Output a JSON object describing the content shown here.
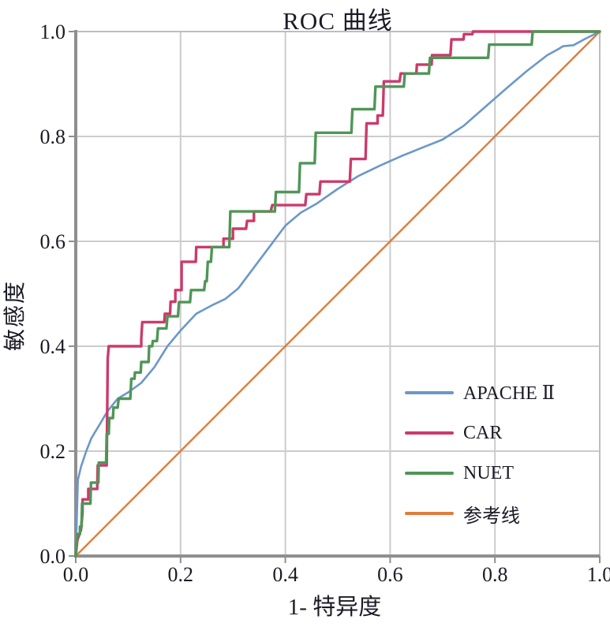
{
  "chart_data": {
    "type": "line",
    "title": "ROC 曲线",
    "xlabel": "1- 特异度",
    "ylabel": "敏感度",
    "xlim": [
      0.0,
      1.0
    ],
    "ylim": [
      0.0,
      1.0
    ],
    "grid": true,
    "grid_ticks": [
      0.2,
      0.4,
      0.6,
      0.8
    ],
    "x_ticks": [
      0.0,
      0.2,
      0.4,
      0.6,
      0.8,
      1.0
    ],
    "x_tick_labels": [
      "0.0",
      "0.2",
      "0.4",
      "0.6",
      "0.8",
      "1.0"
    ],
    "y_ticks": [
      0.0,
      0.2,
      0.4,
      0.6,
      0.8,
      1.0
    ],
    "y_tick_labels": [
      "0.0",
      "0.2",
      "0.4",
      "0.6",
      "0.8",
      "1.0"
    ],
    "legend_position": "lower-right",
    "series": [
      {
        "name": "APACHE Ⅱ",
        "color": "#6b97cb",
        "line_style": "smooth",
        "points": [
          [
            0,
            0
          ],
          [
            0.004,
            0.145
          ],
          [
            0.01,
            0.17
          ],
          [
            0.02,
            0.2
          ],
          [
            0.03,
            0.225
          ],
          [
            0.045,
            0.25
          ],
          [
            0.06,
            0.275
          ],
          [
            0.08,
            0.3
          ],
          [
            0.1,
            0.312
          ],
          [
            0.125,
            0.33
          ],
          [
            0.15,
            0.36
          ],
          [
            0.175,
            0.4
          ],
          [
            0.2,
            0.43
          ],
          [
            0.23,
            0.462
          ],
          [
            0.26,
            0.478
          ],
          [
            0.285,
            0.49
          ],
          [
            0.31,
            0.51
          ],
          [
            0.34,
            0.55
          ],
          [
            0.37,
            0.59
          ],
          [
            0.4,
            0.63
          ],
          [
            0.43,
            0.655
          ],
          [
            0.46,
            0.672
          ],
          [
            0.5,
            0.7
          ],
          [
            0.54,
            0.725
          ],
          [
            0.58,
            0.744
          ],
          [
            0.62,
            0.762
          ],
          [
            0.66,
            0.778
          ],
          [
            0.7,
            0.794
          ],
          [
            0.74,
            0.82
          ],
          [
            0.78,
            0.855
          ],
          [
            0.82,
            0.89
          ],
          [
            0.86,
            0.924
          ],
          [
            0.9,
            0.955
          ],
          [
            0.92,
            0.966
          ],
          [
            0.93,
            0.972
          ],
          [
            0.95,
            0.974
          ],
          [
            0.97,
            0.985
          ],
          [
            1,
            1
          ]
        ]
      },
      {
        "name": "CAR",
        "color": "#cc3a6b",
        "line_style": "step",
        "points": [
          [
            0,
            0
          ],
          [
            0.003,
            0.03
          ],
          [
            0.01,
            0.05
          ],
          [
            0.013,
            0.083
          ],
          [
            0.013,
            0.108
          ],
          [
            0.024,
            0.108
          ],
          [
            0.024,
            0.128
          ],
          [
            0.041,
            0.128
          ],
          [
            0.042,
            0.173
          ],
          [
            0.059,
            0.173
          ],
          [
            0.061,
            0.376
          ],
          [
            0.063,
            0.4
          ],
          [
            0.125,
            0.4
          ],
          [
            0.125,
            0.414
          ],
          [
            0.127,
            0.446
          ],
          [
            0.169,
            0.446
          ],
          [
            0.17,
            0.462
          ],
          [
            0.18,
            0.462
          ],
          [
            0.181,
            0.485
          ],
          [
            0.19,
            0.485
          ],
          [
            0.19,
            0.507
          ],
          [
            0.202,
            0.507
          ],
          [
            0.202,
            0.561
          ],
          [
            0.229,
            0.561
          ],
          [
            0.23,
            0.589
          ],
          [
            0.282,
            0.589
          ],
          [
            0.282,
            0.605
          ],
          [
            0.3,
            0.605
          ],
          [
            0.3,
            0.624
          ],
          [
            0.325,
            0.624
          ],
          [
            0.327,
            0.639
          ],
          [
            0.34,
            0.639
          ],
          [
            0.34,
            0.657
          ],
          [
            0.372,
            0.657
          ],
          [
            0.375,
            0.669
          ],
          [
            0.438,
            0.669
          ],
          [
            0.44,
            0.69
          ],
          [
            0.465,
            0.69
          ],
          [
            0.467,
            0.714
          ],
          [
            0.523,
            0.714
          ],
          [
            0.525,
            0.757
          ],
          [
            0.553,
            0.757
          ],
          [
            0.555,
            0.825
          ],
          [
            0.576,
            0.825
          ],
          [
            0.576,
            0.84
          ],
          [
            0.586,
            0.84
          ],
          [
            0.588,
            0.905
          ],
          [
            0.618,
            0.905
          ],
          [
            0.62,
            0.92
          ],
          [
            0.65,
            0.92
          ],
          [
            0.651,
            0.937
          ],
          [
            0.679,
            0.937
          ],
          [
            0.68,
            0.955
          ],
          [
            0.715,
            0.955
          ],
          [
            0.717,
            0.985
          ],
          [
            0.74,
            0.985
          ],
          [
            0.741,
            0.995
          ],
          [
            0.757,
            0.995
          ],
          [
            0.758,
            1.0
          ],
          [
            1.0,
            1.0
          ]
        ]
      },
      {
        "name": "NUET",
        "color": "#4f9656",
        "line_style": "step",
        "points": [
          [
            0,
            0
          ],
          [
            0.003,
            0.042
          ],
          [
            0.008,
            0.042
          ],
          [
            0.008,
            0.056
          ],
          [
            0.011,
            0.056
          ],
          [
            0.012,
            0.1
          ],
          [
            0.028,
            0.1
          ],
          [
            0.029,
            0.14
          ],
          [
            0.043,
            0.14
          ],
          [
            0.044,
            0.178
          ],
          [
            0.058,
            0.178
          ],
          [
            0.059,
            0.233
          ],
          [
            0.063,
            0.233
          ],
          [
            0.064,
            0.263
          ],
          [
            0.071,
            0.263
          ],
          [
            0.072,
            0.283
          ],
          [
            0.08,
            0.283
          ],
          [
            0.082,
            0.3
          ],
          [
            0.104,
            0.3
          ],
          [
            0.106,
            0.338
          ],
          [
            0.112,
            0.338
          ],
          [
            0.113,
            0.35
          ],
          [
            0.124,
            0.35
          ],
          [
            0.125,
            0.37
          ],
          [
            0.139,
            0.37
          ],
          [
            0.14,
            0.4
          ],
          [
            0.146,
            0.4
          ],
          [
            0.147,
            0.41
          ],
          [
            0.155,
            0.41
          ],
          [
            0.157,
            0.434
          ],
          [
            0.173,
            0.434
          ],
          [
            0.175,
            0.457
          ],
          [
            0.195,
            0.457
          ],
          [
            0.197,
            0.484
          ],
          [
            0.218,
            0.484
          ],
          [
            0.22,
            0.507
          ],
          [
            0.245,
            0.507
          ],
          [
            0.247,
            0.524
          ],
          [
            0.25,
            0.524
          ],
          [
            0.252,
            0.561
          ],
          [
            0.258,
            0.561
          ],
          [
            0.26,
            0.589
          ],
          [
            0.293,
            0.589
          ],
          [
            0.295,
            0.657
          ],
          [
            0.38,
            0.657
          ],
          [
            0.382,
            0.694
          ],
          [
            0.426,
            0.694
          ],
          [
            0.428,
            0.749
          ],
          [
            0.456,
            0.749
          ],
          [
            0.458,
            0.807
          ],
          [
            0.526,
            0.807
          ],
          [
            0.528,
            0.852
          ],
          [
            0.57,
            0.852
          ],
          [
            0.572,
            0.895
          ],
          [
            0.626,
            0.895
          ],
          [
            0.628,
            0.92
          ],
          [
            0.674,
            0.92
          ],
          [
            0.676,
            0.95
          ],
          [
            0.787,
            0.95
          ],
          [
            0.789,
            0.975
          ],
          [
            0.87,
            0.975
          ],
          [
            0.872,
            1.0
          ],
          [
            1.0,
            1.0
          ]
        ]
      },
      {
        "name": "参考线",
        "color": "#e07c3c",
        "line_style": "reference",
        "points": [
          [
            0,
            0
          ],
          [
            1,
            1
          ]
        ]
      }
    ]
  },
  "colors": {
    "background": "#ffffff",
    "grid": "#cccccc",
    "frame": "#bdbdbd",
    "axis": "#8f8f8f",
    "text": "#1b1b26"
  }
}
